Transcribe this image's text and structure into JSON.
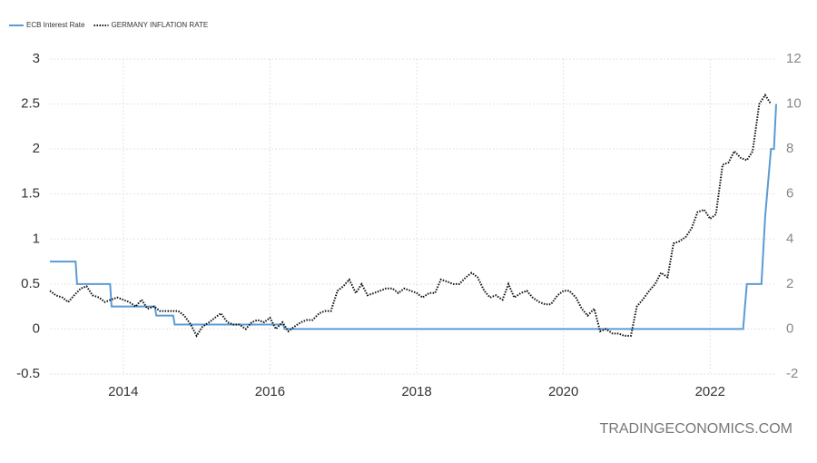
{
  "chart_data": {
    "type": "line",
    "watermark": "TRADINGECONOMICS.COM",
    "xlim": [
      2013,
      2022.9
    ],
    "xticks": [
      2014,
      2016,
      2018,
      2020,
      2022
    ],
    "ylim": [
      -0.5,
      3
    ],
    "yticks": [
      -0.5,
      0,
      0.5,
      1,
      1.5,
      2,
      2.5,
      3
    ],
    "y2lim": [
      -2,
      12
    ],
    "y2ticks": [
      -2,
      0,
      2,
      4,
      6,
      8,
      10,
      12
    ],
    "grid": true,
    "legend": "top-left",
    "series": [
      {
        "name": "ECB Interest Rate",
        "color": "#5b9bd5",
        "style": "solid",
        "x": [
          2013,
          2013.35,
          2013.37,
          2013.82,
          2013.84,
          2014.43,
          2014.45,
          2014.68,
          2014.7,
          2016.18,
          2016.2,
          2022.45,
          2022.5,
          2022.7,
          2022.75,
          2022.83,
          2022.87,
          2022.9
        ],
        "values": [
          0.75,
          0.75,
          0.5,
          0.5,
          0.25,
          0.25,
          0.15,
          0.15,
          0.05,
          0.05,
          0,
          0,
          0.5,
          0.5,
          1.25,
          2,
          2,
          2.5
        ]
      },
      {
        "name": "GERMANY INFLATION RATE",
        "color": "#111111",
        "style": "dotted",
        "axis": "y2",
        "x": [
          2013,
          2013.08,
          2013.17,
          2013.25,
          2013.33,
          2013.42,
          2013.5,
          2013.58,
          2013.67,
          2013.75,
          2013.83,
          2013.92,
          2014,
          2014.08,
          2014.17,
          2014.25,
          2014.33,
          2014.42,
          2014.5,
          2014.58,
          2014.67,
          2014.75,
          2014.83,
          2014.92,
          2015,
          2015.08,
          2015.17,
          2015.25,
          2015.33,
          2015.42,
          2015.5,
          2015.58,
          2015.67,
          2015.75,
          2015.83,
          2015.92,
          2016,
          2016.08,
          2016.17,
          2016.25,
          2016.33,
          2016.42,
          2016.5,
          2016.58,
          2016.67,
          2016.75,
          2016.83,
          2016.92,
          2017,
          2017.08,
          2017.17,
          2017.25,
          2017.33,
          2017.42,
          2017.5,
          2017.58,
          2017.67,
          2017.75,
          2017.83,
          2017.92,
          2018,
          2018.08,
          2018.17,
          2018.25,
          2018.33,
          2018.42,
          2018.5,
          2018.58,
          2018.67,
          2018.75,
          2018.83,
          2018.92,
          2019,
          2019.08,
          2019.17,
          2019.25,
          2019.33,
          2019.42,
          2019.5,
          2019.58,
          2019.67,
          2019.75,
          2019.83,
          2019.92,
          2020,
          2020.08,
          2020.17,
          2020.25,
          2020.33,
          2020.42,
          2020.5,
          2020.58,
          2020.67,
          2020.75,
          2020.83,
          2020.92,
          2021,
          2021.08,
          2021.17,
          2021.25,
          2021.33,
          2021.42,
          2021.5,
          2021.58,
          2021.67,
          2021.75,
          2021.83,
          2021.92,
          2022,
          2022.08,
          2022.17,
          2022.25,
          2022.33,
          2022.42,
          2022.5,
          2022.58,
          2022.67,
          2022.75,
          2022.83
        ],
        "values": [
          1.7,
          1.5,
          1.4,
          1.2,
          1.5,
          1.8,
          1.9,
          1.5,
          1.4,
          1.2,
          1.3,
          1.4,
          1.3,
          1.2,
          1.0,
          1.3,
          0.9,
          1.0,
          0.8,
          0.8,
          0.8,
          0.8,
          0.6,
          0.2,
          -0.3,
          0.1,
          0.3,
          0.5,
          0.7,
          0.3,
          0.2,
          0.2,
          0.0,
          0.3,
          0.4,
          0.3,
          0.5,
          0.0,
          0.3,
          -0.1,
          0.1,
          0.3,
          0.4,
          0.4,
          0.7,
          0.8,
          0.8,
          1.7,
          1.9,
          2.2,
          1.6,
          2.0,
          1.5,
          1.6,
          1.7,
          1.8,
          1.8,
          1.6,
          1.8,
          1.7,
          1.6,
          1.4,
          1.6,
          1.6,
          2.2,
          2.1,
          2.0,
          2.0,
          2.3,
          2.5,
          2.3,
          1.7,
          1.4,
          1.5,
          1.3,
          2.0,
          1.4,
          1.6,
          1.7,
          1.4,
          1.2,
          1.1,
          1.1,
          1.5,
          1.7,
          1.7,
          1.4,
          0.9,
          0.6,
          0.9,
          -0.1,
          0.0,
          -0.2,
          -0.2,
          -0.3,
          -0.3,
          1.0,
          1.3,
          1.7,
          2.0,
          2.5,
          2.3,
          3.8,
          3.9,
          4.1,
          4.5,
          5.2,
          5.3,
          4.9,
          5.1,
          7.3,
          7.4,
          7.9,
          7.6,
          7.5,
          7.9,
          10.0,
          10.4,
          10.0
        ]
      }
    ]
  }
}
